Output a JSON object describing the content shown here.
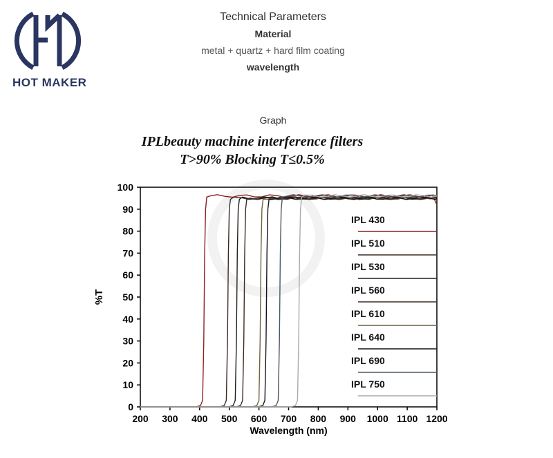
{
  "brand": {
    "name": "HOT MAKER",
    "color": "#2b3561"
  },
  "header": {
    "title": "Technical Parameters",
    "material_label": "Material",
    "material_value": "metal + quartz + hard film coating",
    "wavelength_label": "wavelength",
    "graph_label": "Graph"
  },
  "chart_data": {
    "type": "line",
    "title": "IPLbeauty machine interference filters",
    "subtitle": "T>90% Blocking T≤0.5%",
    "xlabel": "Wavelength (nm)",
    "ylabel": "%T",
    "xlim": [
      200,
      1200
    ],
    "ylim": [
      0,
      100
    ],
    "x_ticks": [
      "200",
      "300",
      "400",
      "500",
      "600",
      "700",
      "800",
      "900",
      "1000",
      "1100",
      "1200"
    ],
    "y_ticks": [
      "0",
      "10",
      "20",
      "30",
      "40",
      "50",
      "60",
      "70",
      "80",
      "90",
      "100"
    ],
    "grid": false,
    "legend_position": "right",
    "series": [
      {
        "name": "IPL 430",
        "cutoff_nm": 415,
        "plateau": 96,
        "color": "#8b2020"
      },
      {
        "name": "IPL 510",
        "cutoff_nm": 495,
        "plateau": 95,
        "color": "#3a2a22"
      },
      {
        "name": "IPL 530",
        "cutoff_nm": 525,
        "plateau": 95,
        "color": "#1e1e1e"
      },
      {
        "name": "IPL 560",
        "cutoff_nm": 550,
        "plateau": 95,
        "color": "#3b2a20"
      },
      {
        "name": "IPL 610",
        "cutoff_nm": 605,
        "plateau": 95,
        "color": "#6e6240"
      },
      {
        "name": "IPL 640",
        "cutoff_nm": 625,
        "plateau": 95,
        "color": "#141414"
      },
      {
        "name": "IPL 690",
        "cutoff_nm": 670,
        "plateau": 96,
        "color": "#4a5660"
      },
      {
        "name": "IPL 750",
        "cutoff_nm": 735,
        "plateau": 96,
        "color": "#aaaaaa"
      }
    ]
  }
}
